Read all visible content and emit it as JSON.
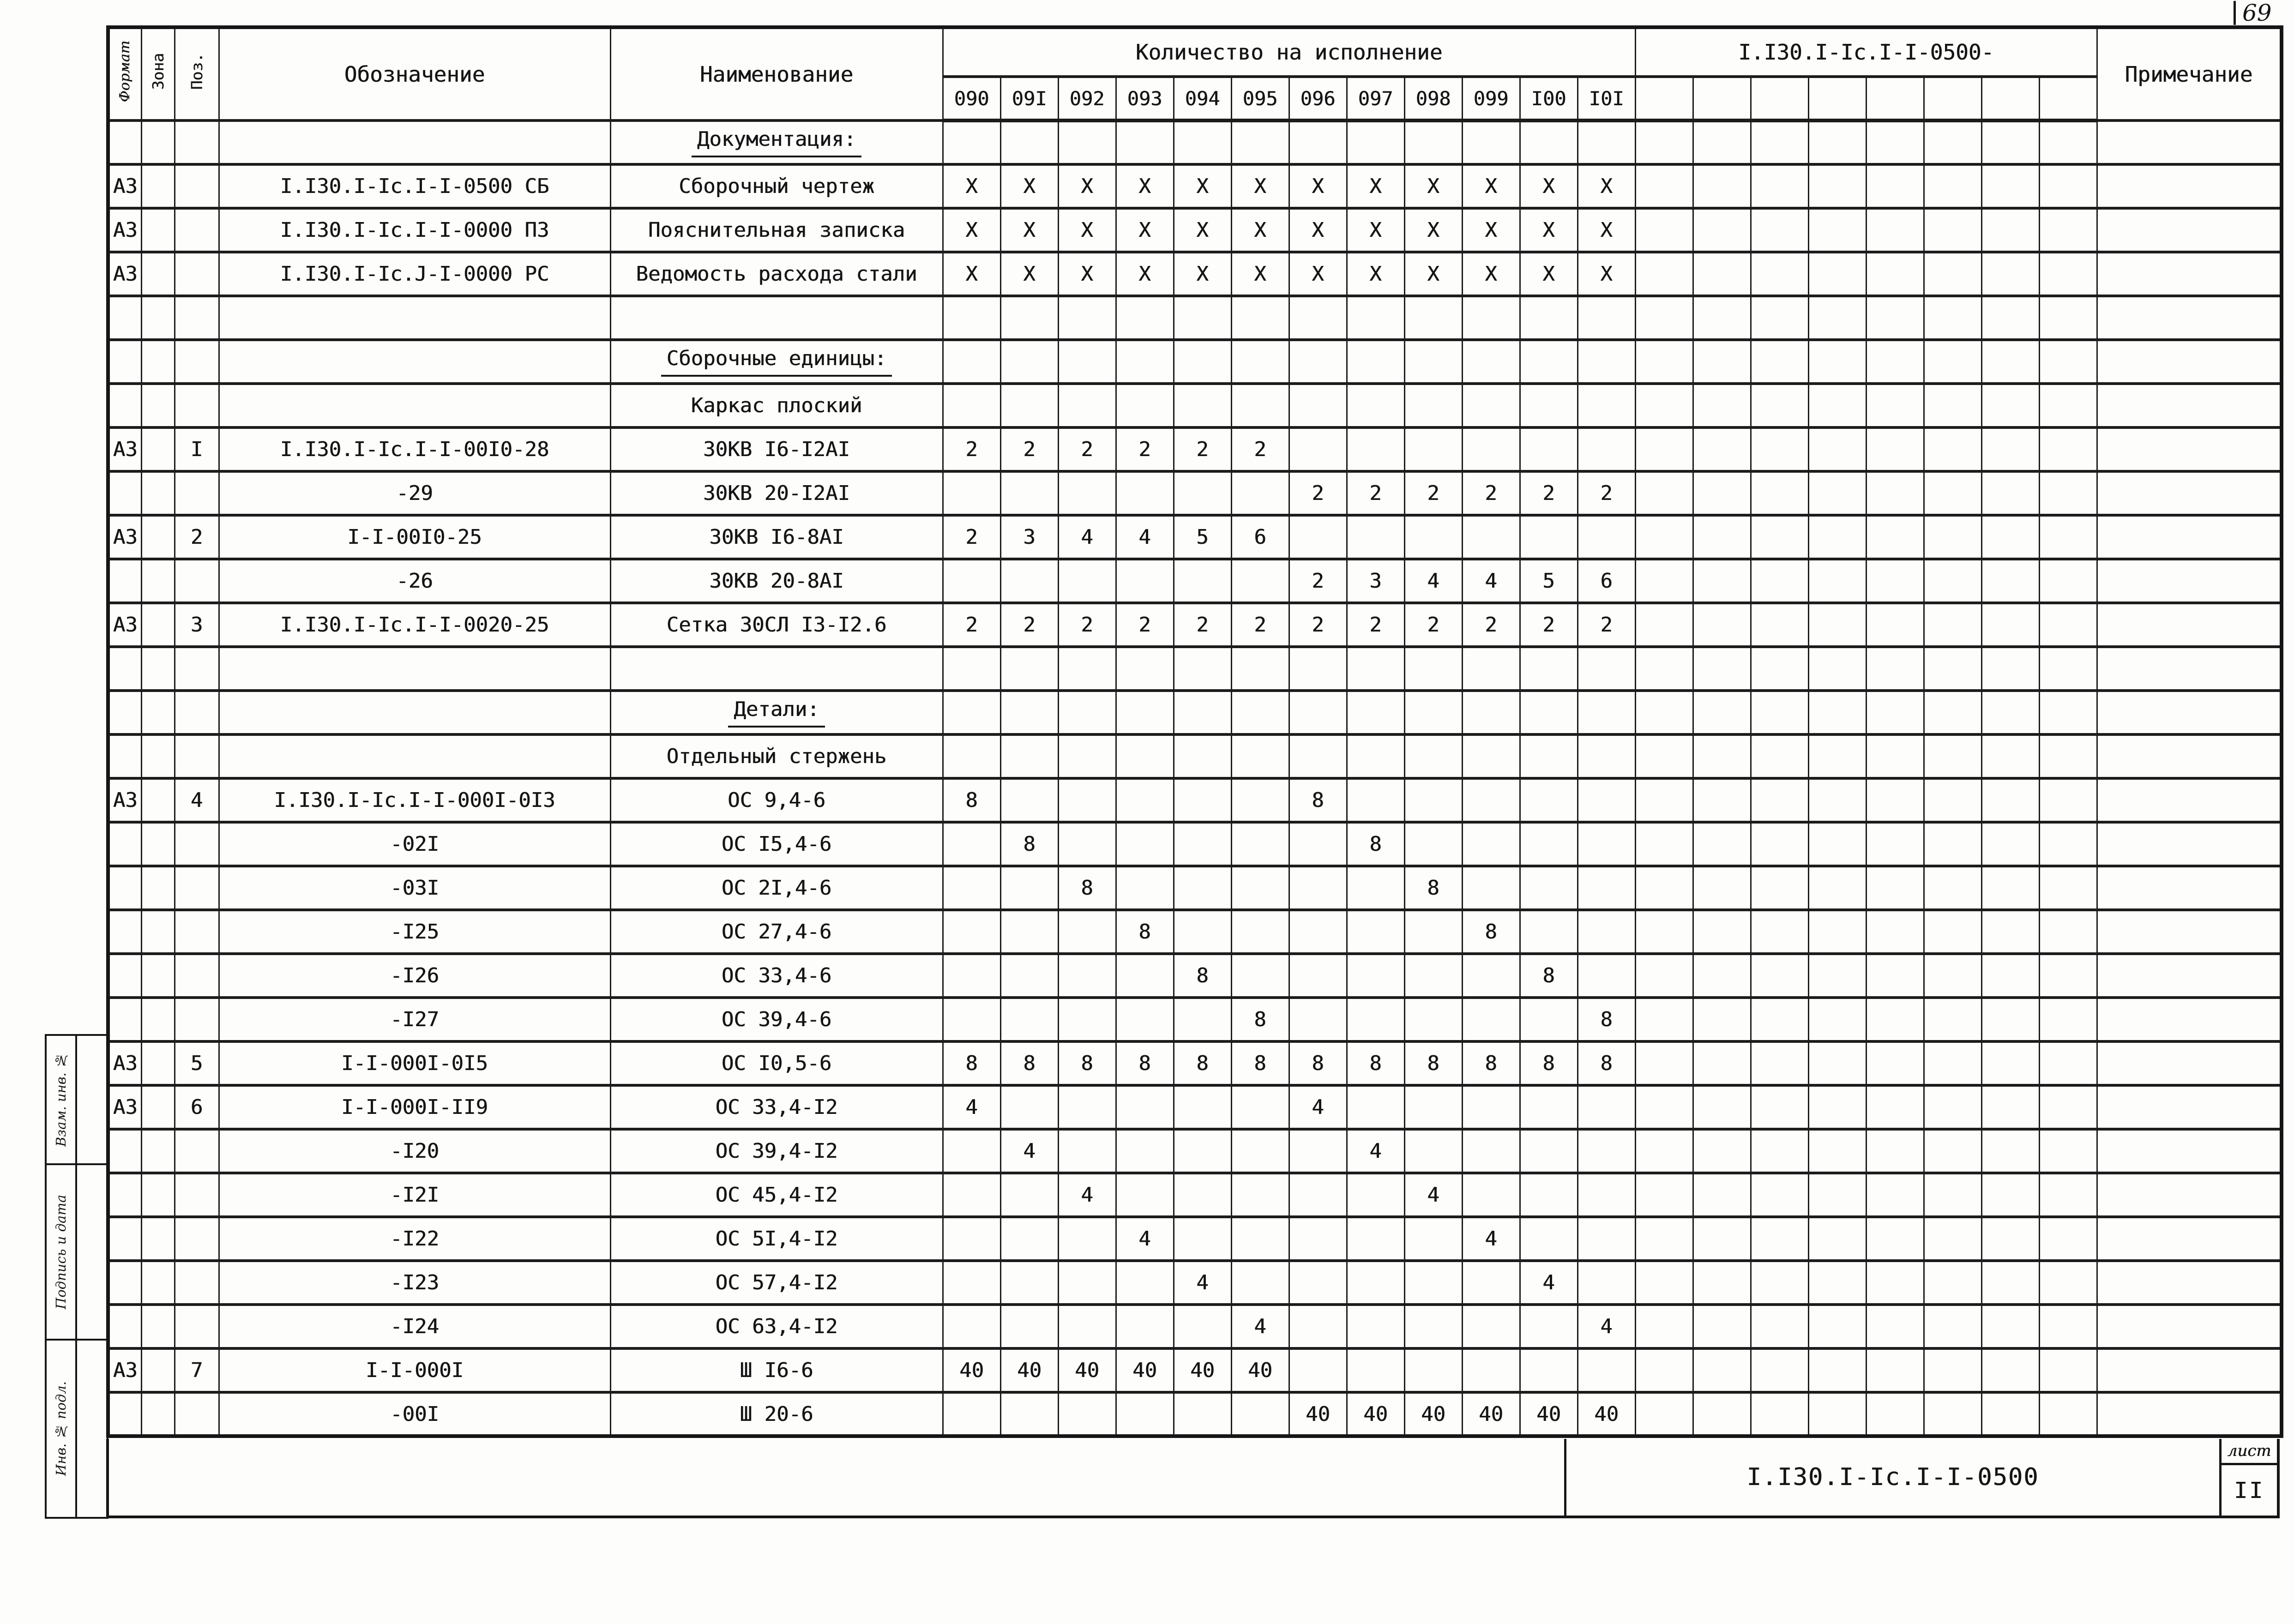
{
  "page": {
    "corner_page_number": "69",
    "footer_code": "I.I30.I-Ic.I-I-0500",
    "sheet_label": "лист",
    "sheet_number": "II"
  },
  "margin_stamps": [
    {
      "label": "Взам. инв. №"
    },
    {
      "label": "Подпись и дата"
    },
    {
      "label": "Инв. № подл."
    }
  ],
  "table": {
    "headers": {
      "format": "Формат",
      "zone": "Зона",
      "pos": "Поз.",
      "designation": "Обозначение",
      "name": "Наименование",
      "qty_group": "Количество на исполнение",
      "code_group": "I.I30.I-Ic.I-I-0500-",
      "note": "Примечание",
      "qty_columns": [
        "090",
        "09I",
        "092",
        "093",
        "094",
        "095",
        "096",
        "097",
        "098",
        "099",
        "I00",
        "I0I"
      ]
    },
    "rows": [
      {
        "f": "",
        "z": "",
        "p": "",
        "d": "",
        "n": "Документация:",
        "u": 1,
        "q": [
          "",
          "",
          "",
          "",
          "",
          "",
          "",
          "",
          "",
          "",
          "",
          ""
        ]
      },
      {
        "f": "А3",
        "z": "",
        "p": "",
        "d": "I.I30.I-Ic.I-I-0500 СБ",
        "n": "Сборочный чертеж",
        "na": "l",
        "q": [
          "X",
          "X",
          "X",
          "X",
          "X",
          "X",
          "X",
          "X",
          "X",
          "X",
          "X",
          "X"
        ]
      },
      {
        "f": "А3",
        "z": "",
        "p": "",
        "d": "I.I30.I-Ic.I-I-0000 ПЗ",
        "n": "Пояснительная записка",
        "na": "l",
        "q": [
          "X",
          "X",
          "X",
          "X",
          "X",
          "X",
          "X",
          "X",
          "X",
          "X",
          "X",
          "X"
        ]
      },
      {
        "f": "А3",
        "z": "",
        "p": "",
        "d": "I.I30.I-Ic.J-I-0000 РС",
        "n": "Ведомость расхода стали",
        "na": "l",
        "q": [
          "X",
          "X",
          "X",
          "X",
          "X",
          "X",
          "X",
          "X",
          "X",
          "X",
          "X",
          "X"
        ]
      },
      {
        "f": "",
        "z": "",
        "p": "",
        "d": "",
        "n": "",
        "q": [
          "",
          "",
          "",
          "",
          "",
          "",
          "",
          "",
          "",
          "",
          "",
          ""
        ]
      },
      {
        "f": "",
        "z": "",
        "p": "",
        "d": "",
        "n": "Сборочные единицы:",
        "u": 1,
        "q": [
          "",
          "",
          "",
          "",
          "",
          "",
          "",
          "",
          "",
          "",
          "",
          ""
        ]
      },
      {
        "f": "",
        "z": "",
        "p": "",
        "d": "",
        "n": "Каркас плоский",
        "na": "l",
        "q": [
          "",
          "",
          "",
          "",
          "",
          "",
          "",
          "",
          "",
          "",
          "",
          ""
        ]
      },
      {
        "f": "А3",
        "z": "",
        "p": "I",
        "d": "I.I30.I-Ic.I-I-00I0-28",
        "n": "30КВ I6-I2АI",
        "q": [
          "2",
          "2",
          "2",
          "2",
          "2",
          "2",
          "",
          "",
          "",
          "",
          "",
          ""
        ]
      },
      {
        "f": "",
        "z": "",
        "p": "",
        "d": "-29",
        "da": "r",
        "n": "30КВ 20-I2АI",
        "q": [
          "",
          "",
          "",
          "",
          "",
          "",
          "2",
          "2",
          "2",
          "2",
          "2",
          "2"
        ]
      },
      {
        "f": "А3",
        "z": "",
        "p": "2",
        "d": "I-I-00I0-25",
        "da": "r",
        "n": "30КВ I6-8АI",
        "q": [
          "2",
          "3",
          "4",
          "4",
          "5",
          "6",
          "",
          "",
          "",
          "",
          "",
          ""
        ]
      },
      {
        "f": "",
        "z": "",
        "p": "",
        "d": "-26",
        "da": "r",
        "n": "30КВ 20-8АI",
        "q": [
          "",
          "",
          "",
          "",
          "",
          "",
          "2",
          "3",
          "4",
          "4",
          "5",
          "6"
        ]
      },
      {
        "f": "А3",
        "z": "",
        "p": "3",
        "d": "I.I30.I-Ic.I-I-0020-25",
        "n": "Сетка 30СЛ I3-I2.6",
        "na": "l",
        "q": [
          "2",
          "2",
          "2",
          "2",
          "2",
          "2",
          "2",
          "2",
          "2",
          "2",
          "2",
          "2"
        ]
      },
      {
        "f": "",
        "z": "",
        "p": "",
        "d": "",
        "n": "",
        "q": [
          "",
          "",
          "",
          "",
          "",
          "",
          "",
          "",
          "",
          "",
          "",
          ""
        ]
      },
      {
        "f": "",
        "z": "",
        "p": "",
        "d": "",
        "n": "Детали:",
        "u": 1,
        "q": [
          "",
          "",
          "",
          "",
          "",
          "",
          "",
          "",
          "",
          "",
          "",
          ""
        ]
      },
      {
        "f": "",
        "z": "",
        "p": "",
        "d": "",
        "n": "Отдельный стержень",
        "na": "l",
        "q": [
          "",
          "",
          "",
          "",
          "",
          "",
          "",
          "",
          "",
          "",
          "",
          ""
        ]
      },
      {
        "f": "А3",
        "z": "",
        "p": "4",
        "d": "I.I30.I-Ic.I-I-000I-0I3",
        "n": "ОС 9,4-6",
        "q": [
          "8",
          "",
          "",
          "",
          "",
          "",
          "8",
          "",
          "",
          "",
          "",
          ""
        ]
      },
      {
        "f": "",
        "z": "",
        "p": "",
        "d": "-02I",
        "da": "r",
        "n": "ОС I5,4-6",
        "q": [
          "",
          "8",
          "",
          "",
          "",
          "",
          "",
          "8",
          "",
          "",
          "",
          ""
        ]
      },
      {
        "f": "",
        "z": "",
        "p": "",
        "d": "-03I",
        "da": "r",
        "n": "ОС 2I,4-6",
        "q": [
          "",
          "",
          "8",
          "",
          "",
          "",
          "",
          "",
          "8",
          "",
          "",
          ""
        ]
      },
      {
        "f": "",
        "z": "",
        "p": "",
        "d": "-I25",
        "da": "r",
        "n": "ОС 27,4-6",
        "q": [
          "",
          "",
          "",
          "8",
          "",
          "",
          "",
          "",
          "",
          "8",
          "",
          ""
        ]
      },
      {
        "f": "",
        "z": "",
        "p": "",
        "d": "-I26",
        "da": "r",
        "n": "ОС 33,4-6",
        "q": [
          "",
          "",
          "",
          "",
          "8",
          "",
          "",
          "",
          "",
          "",
          "8",
          ""
        ]
      },
      {
        "f": "",
        "z": "",
        "p": "",
        "d": "-I27",
        "da": "r",
        "n": "ОС 39,4-6",
        "q": [
          "",
          "",
          "",
          "",
          "",
          "8",
          "",
          "",
          "",
          "",
          "",
          "8"
        ]
      },
      {
        "f": "А3",
        "z": "",
        "p": "5",
        "d": "I-I-000I-0I5",
        "da": "r",
        "n": "ОС I0,5-6",
        "q": [
          "8",
          "8",
          "8",
          "8",
          "8",
          "8",
          "8",
          "8",
          "8",
          "8",
          "8",
          "8"
        ]
      },
      {
        "f": "А3",
        "z": "",
        "p": "6",
        "d": "I-I-000I-II9",
        "da": "r",
        "n": "ОС 33,4-I2",
        "q": [
          "4",
          "",
          "",
          "",
          "",
          "",
          "4",
          "",
          "",
          "",
          "",
          ""
        ]
      },
      {
        "f": "",
        "z": "",
        "p": "",
        "d": "-I20",
        "da": "r",
        "n": "ОС 39,4-I2",
        "q": [
          "",
          "4",
          "",
          "",
          "",
          "",
          "",
          "4",
          "",
          "",
          "",
          ""
        ]
      },
      {
        "f": "",
        "z": "",
        "p": "",
        "d": "-I2I",
        "da": "r",
        "n": "ОС 45,4-I2",
        "q": [
          "",
          "",
          "4",
          "",
          "",
          "",
          "",
          "",
          "4",
          "",
          "",
          ""
        ]
      },
      {
        "f": "",
        "z": "",
        "p": "",
        "d": "-I22",
        "da": "r",
        "n": "ОС 5I,4-I2",
        "q": [
          "",
          "",
          "",
          "4",
          "",
          "",
          "",
          "",
          "",
          "4",
          "",
          ""
        ]
      },
      {
        "f": "",
        "z": "",
        "p": "",
        "d": "-I23",
        "da": "r",
        "n": "ОС 57,4-I2",
        "q": [
          "",
          "",
          "",
          "",
          "4",
          "",
          "",
          "",
          "",
          "",
          "4",
          ""
        ]
      },
      {
        "f": "",
        "z": "",
        "p": "",
        "d": "-I24",
        "da": "r",
        "n": "ОС 63,4-I2",
        "q": [
          "",
          "",
          "",
          "",
          "",
          "4",
          "",
          "",
          "",
          "",
          "",
          "4"
        ]
      },
      {
        "f": "А3",
        "z": "",
        "p": "7",
        "d": "I-I-000I",
        "n": "Ш I6-6",
        "q": [
          "40",
          "40",
          "40",
          "40",
          "40",
          "40",
          "",
          "",
          "",
          "",
          "",
          ""
        ]
      },
      {
        "f": "",
        "z": "",
        "p": "",
        "d": "-00I",
        "da": "r",
        "n": "Ш 20-6",
        "q": [
          "",
          "",
          "",
          "",
          "",
          "",
          "40",
          "40",
          "40",
          "40",
          "40",
          "40"
        ]
      }
    ]
  }
}
